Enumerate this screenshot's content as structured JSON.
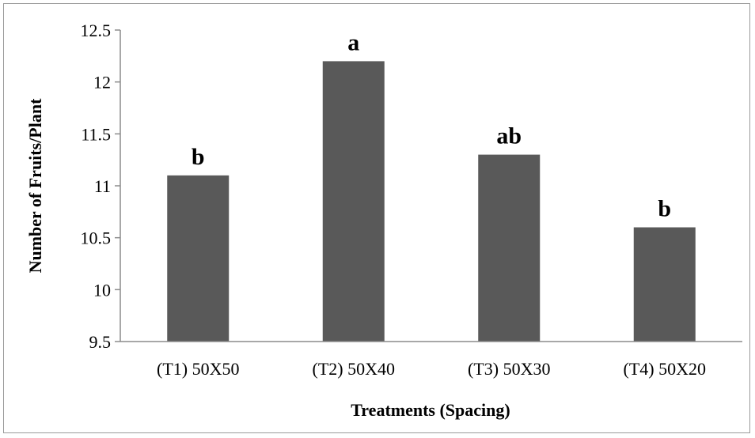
{
  "chart_data": {
    "type": "bar",
    "title": "",
    "xlabel": "Treatments (Spacing)",
    "ylabel": "Number of Fruits/Plant",
    "categories": [
      "(T1) 50X50",
      "(T2) 50X40",
      "(T3) 50X30",
      "(T4) 50X20"
    ],
    "values": [
      11.1,
      12.2,
      11.3,
      10.6
    ],
    "significance_letters": [
      "b",
      "a",
      "ab",
      "b"
    ],
    "ylim": [
      9.5,
      12.5
    ],
    "yticks": [
      "9.5",
      "10",
      "10.5",
      "11",
      "11.5",
      "12",
      "12.5"
    ],
    "grid": false,
    "legend": "none",
    "bar_color": "#595959"
  }
}
